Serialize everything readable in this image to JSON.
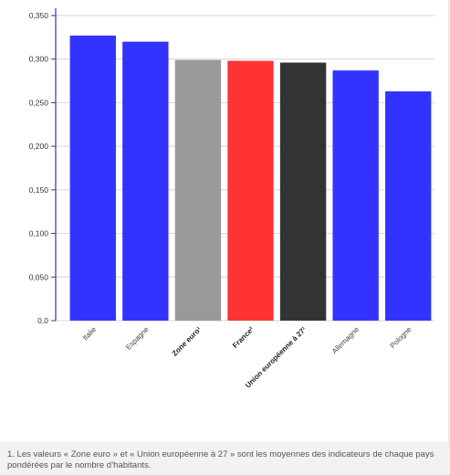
{
  "chart_data": {
    "type": "bar",
    "categories": [
      "Italie",
      "Espagne",
      "Zone euro¹",
      "France²",
      "Union européenne à 27¹",
      "Allemagne",
      "Pologne"
    ],
    "bold_categories": [
      "Zone euro¹",
      "France²",
      "Union européenne à 27¹"
    ],
    "values": [
      0.327,
      0.32,
      0.299,
      0.298,
      0.296,
      0.287,
      0.263
    ],
    "colors": [
      "#3333ff",
      "#3333ff",
      "#999999",
      "#ff3333",
      "#333333",
      "#3333ff",
      "#3333ff"
    ],
    "yticks": [
      "0,0",
      "0,050",
      "0,100",
      "0,150",
      "0,200",
      "0,250",
      "0,300",
      "0,350"
    ],
    "ylim": [
      0,
      0.35
    ],
    "grid": true,
    "title": "",
    "xlabel": "",
    "ylabel": ""
  },
  "footnote": "1. Les valeurs « Zone euro » et « Union européenne à 27 » sont les moyennes des indicateurs de chaque pays pondérées par le nombre d’habitants."
}
